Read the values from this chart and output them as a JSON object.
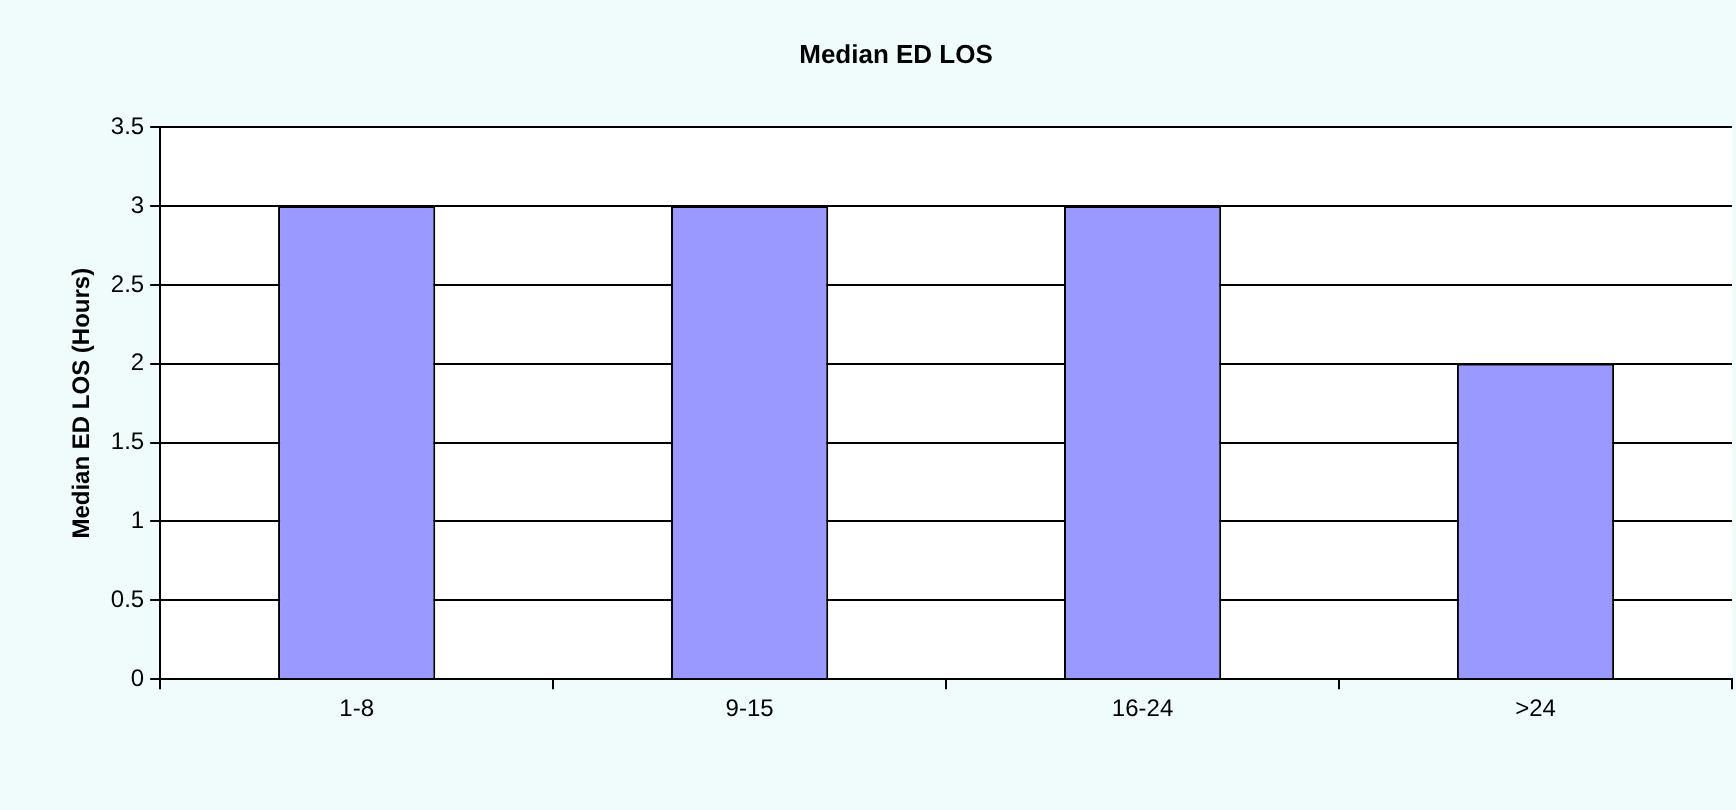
{
  "chart_data": {
    "type": "bar",
    "title": "Median ED LOS",
    "ylabel": "Median ED LOS (Hours)",
    "categories": [
      "1-8",
      "9-15",
      "16-24",
      ">24"
    ],
    "values": [
      3,
      3,
      3,
      2
    ],
    "color": "#9999ff",
    "ylim": [
      0,
      3.5
    ],
    "yticks": [
      0,
      0.5,
      1,
      1.5,
      2,
      2.5,
      3,
      3.5
    ],
    "grid": "y",
    "legend": false
  }
}
